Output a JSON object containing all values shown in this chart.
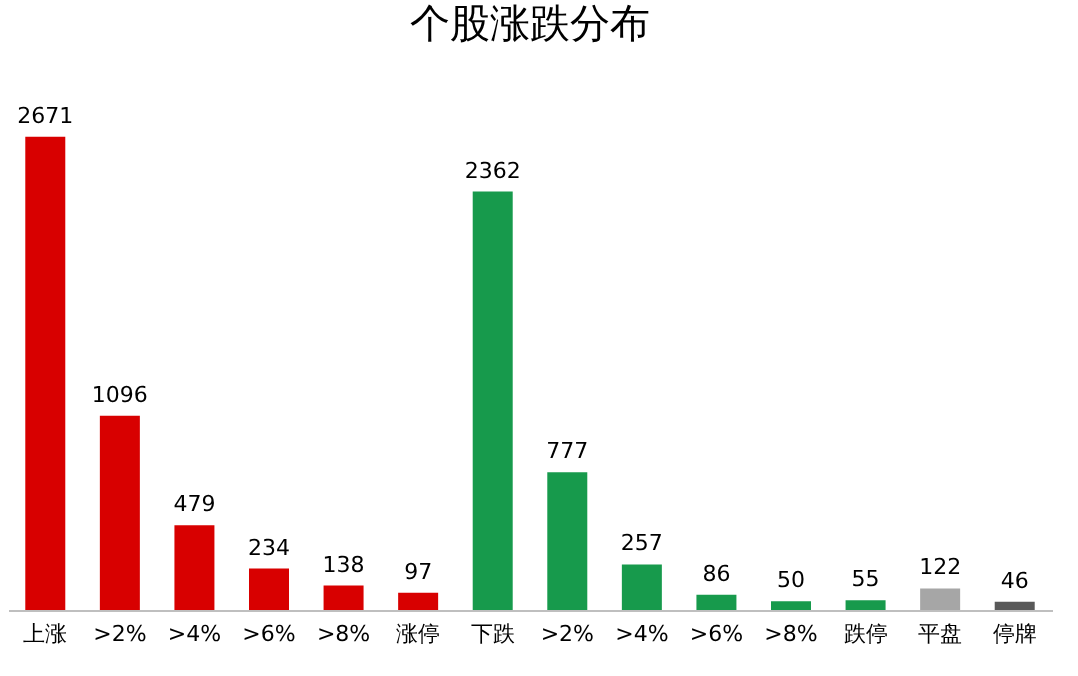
{
  "chart_data": {
    "type": "bar",
    "title": "个股涨跌分布",
    "categories": [
      "上涨",
      ">2%",
      ">4%",
      ">6%",
      ">8%",
      "涨停",
      "下跌",
      ">2%",
      ">4%",
      ">6%",
      ">8%",
      "跌停",
      "平盘",
      "停牌"
    ],
    "values": [
      2671,
      1096,
      479,
      234,
      138,
      97,
      2362,
      777,
      257,
      86,
      50,
      55,
      122,
      46
    ],
    "colors": [
      "#d80000",
      "#d80000",
      "#d80000",
      "#d80000",
      "#d80000",
      "#d80000",
      "#179a4c",
      "#179a4c",
      "#179a4c",
      "#179a4c",
      "#179a4c",
      "#179a4c",
      "#a6a6a6",
      "#595959"
    ],
    "data_labels": true,
    "tick_labels": "x"
  }
}
